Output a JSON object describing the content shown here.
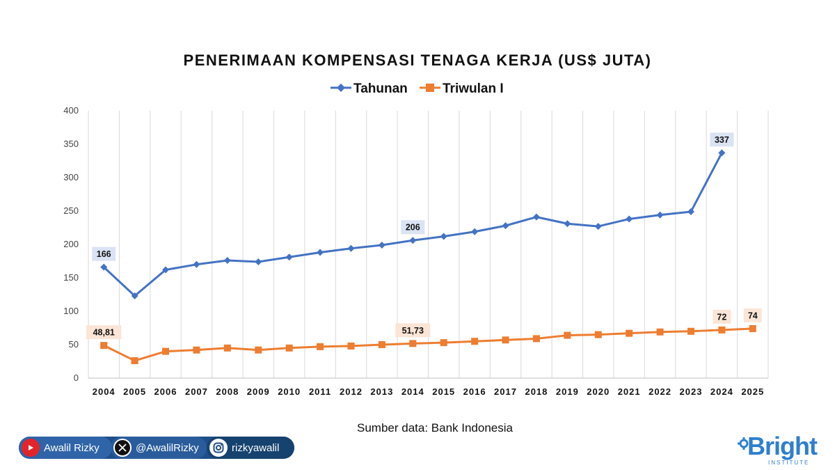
{
  "chart_data": {
    "type": "line",
    "title": "PENERIMAAN KOMPENSASI TENAGA KERJA (US$ JUTA)",
    "categories": [
      "2004",
      "2005",
      "2006",
      "2007",
      "2008",
      "2009",
      "2010",
      "2011",
      "2012",
      "2013",
      "2014",
      "2015",
      "2016",
      "2017",
      "2018",
      "2019",
      "2020",
      "2021",
      "2022",
      "2023",
      "2024",
      "2025"
    ],
    "series": [
      {
        "name": "Tahunan",
        "color": "#4472c4",
        "marker": "diamond",
        "values": [
          166,
          123,
          162,
          170,
          176,
          174,
          181,
          188,
          194,
          199,
          206,
          212,
          219,
          228,
          241,
          231,
          227,
          238,
          244,
          249,
          337,
          null
        ],
        "data_labels": [
          {
            "index": 0,
            "text": "166"
          },
          {
            "index": 10,
            "text": "206"
          },
          {
            "index": 20,
            "text": "337"
          }
        ]
      },
      {
        "name": "Triwulan I",
        "color": "#ed7d31",
        "marker": "square",
        "values": [
          48.81,
          26,
          40,
          42,
          45,
          42,
          45,
          47,
          48,
          50,
          51.73,
          53,
          55,
          57,
          59,
          64,
          65,
          67,
          69,
          70,
          72,
          74
        ],
        "data_labels": [
          {
            "index": 0,
            "text": "48,81"
          },
          {
            "index": 10,
            "text": "51,73"
          },
          {
            "index": 20,
            "text": "72"
          },
          {
            "index": 21,
            "text": "74"
          }
        ]
      }
    ],
    "ylim": [
      0,
      400
    ],
    "yticks": [
      "0",
      "50",
      "100",
      "150",
      "200",
      "250",
      "300",
      "350",
      "400"
    ],
    "grid": "vertical",
    "legend_position": "top"
  },
  "source": "Sumber data: Bank Indonesia",
  "footer": {
    "youtube": {
      "label": "Awalil Rizky",
      "icon": "youtube-icon",
      "color": "#e3252b"
    },
    "twitter": {
      "label": "@AwalilRizky",
      "icon": "x-icon",
      "color": "#000000"
    },
    "instagram": {
      "label": "rizkyawalil",
      "icon": "instagram-icon"
    },
    "bar_color": "#1f4f8a"
  },
  "brand": {
    "name": "Bright",
    "subtitle": "INSTITUTE",
    "color": "#2d7fd0"
  }
}
